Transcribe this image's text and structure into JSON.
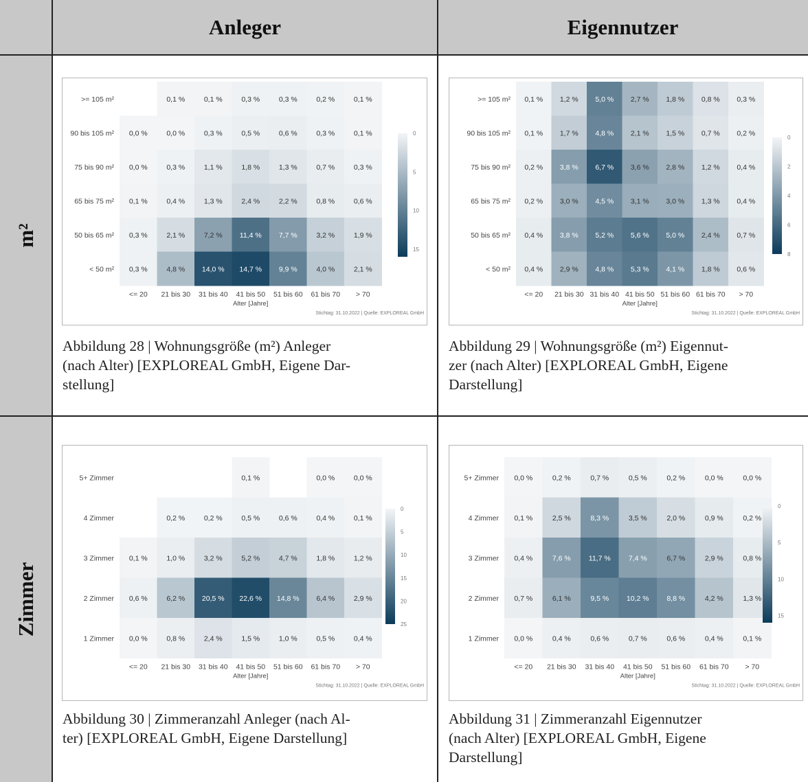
{
  "header": {
    "col1": "Anleger",
    "col2": "Eigennutzer"
  },
  "rows": {
    "row1": "m²",
    "row2": "Zimmer"
  },
  "colors": {
    "low": "#f3f5f7",
    "high": "#0b3b5a",
    "header_bg": "#c8c8c8"
  },
  "captions": {
    "fig28": [
      "Abbildung 28 | Wohnungsgröße (m²) Anleger",
      "(nach Alter) [EXPLOREAL GmbH, Eigene Dar-",
      "stellung]"
    ],
    "fig29": [
      "Abbildung 29 | Wohnungsgröße (m²) Eigennut-",
      "zer (nach Alter) [EXPLOREAL GmbH, Eigene",
      "Darstellung]"
    ],
    "fig30": [
      "Abbildung 30 | Zimmeranzahl Anleger (nach Al-",
      "ter) [EXPLOREAL GmbH, Eigene Darstellung]"
    ],
    "fig31": [
      "Abbildung 31 | Zimmeranzahl Eigennutzer",
      "(nach Alter) [EXPLOREAL GmbH, Eigene",
      "Darstellung]"
    ]
  },
  "chart_data": [
    {
      "type": "heatmap",
      "x": [
        "<= 20",
        "21 bis 30",
        "31 bis 40",
        "41 bis 50",
        "51 bis 60",
        "61 bis 70",
        "> 70"
      ],
      "y": [
        ">= 105 m²",
        "90 bis 105 m²",
        "75 bis 90 m²",
        "65 bis 75 m²",
        "50 bis 65 m²",
        "< 50 m²"
      ],
      "values": [
        [
          null,
          0.1,
          0.1,
          0.3,
          0.3,
          0.2,
          0.1
        ],
        [
          0.0,
          0.0,
          0.3,
          0.5,
          0.6,
          0.3,
          0.1
        ],
        [
          0.0,
          0.3,
          1.1,
          1.8,
          1.3,
          0.7,
          0.3
        ],
        [
          0.1,
          0.4,
          1.3,
          2.4,
          2.2,
          0.8,
          0.6
        ],
        [
          0.3,
          2.1,
          7.2,
          11.4,
          7.7,
          3.2,
          1.9
        ],
        [
          0.3,
          4.8,
          14.0,
          14.7,
          9.9,
          4.0,
          2.1
        ]
      ],
      "labels": [
        [
          "",
          "0,1 %",
          "0,1 %",
          "0,3 %",
          "0,3 %",
          "0,2 %",
          "0,1 %"
        ],
        [
          "0,0 %",
          "0,0 %",
          "0,3 %",
          "0,5 %",
          "0,6 %",
          "0,3 %",
          "0,1 %"
        ],
        [
          "0,0 %",
          "0,3 %",
          "1,1 %",
          "1,8 %",
          "1,3 %",
          "0,7 %",
          "0,3 %"
        ],
        [
          "0,1 %",
          "0,4 %",
          "1,3 %",
          "2,4 %",
          "2,2 %",
          "0,8 %",
          "0,6 %"
        ],
        [
          "0,3 %",
          "2,1 %",
          "7,2 %",
          "11,4 %",
          "7,7 %",
          "3,2 %",
          "1,9 %"
        ],
        [
          "0,3 %",
          "4,8 %",
          "14,0 %",
          "14,7 %",
          "9,9 %",
          "4,0 %",
          "2,1 %"
        ]
      ],
      "xlabel": "Alter [Jahre]",
      "colorbar": {
        "min": 0,
        "max": 16,
        "ticks": [
          "0",
          "5",
          "10",
          "15"
        ]
      },
      "source": "Stichtag: 31.10.2022 | Quelle: EXPLOREAL GmbH"
    },
    {
      "type": "heatmap",
      "x": [
        "<= 20",
        "21 bis 30",
        "31 bis 40",
        "41 bis 50",
        "51 bis 60",
        "61 bis 70",
        "> 70"
      ],
      "y": [
        ">= 105 m²",
        "90 bis 105 m²",
        "75 bis 90 m²",
        "65 bis 75 m²",
        "50 bis 65 m²",
        "< 50 m²"
      ],
      "values": [
        [
          0.1,
          1.2,
          5.0,
          2.7,
          1.8,
          0.8,
          0.3
        ],
        [
          0.1,
          1.7,
          4.8,
          2.1,
          1.5,
          0.7,
          0.2
        ],
        [
          0.2,
          3.8,
          6.7,
          3.6,
          2.8,
          1.2,
          0.4
        ],
        [
          0.2,
          3.0,
          4.5,
          3.1,
          3.0,
          1.3,
          0.4
        ],
        [
          0.4,
          3.8,
          5.2,
          5.6,
          5.0,
          2.4,
          0.7
        ],
        [
          0.4,
          2.9,
          4.8,
          5.3,
          4.1,
          1.8,
          0.6
        ]
      ],
      "labels": [
        [
          "0,1 %",
          "1,2 %",
          "5,0 %",
          "2,7 %",
          "1,8 %",
          "0,8 %",
          "0,3 %"
        ],
        [
          "0,1 %",
          "1,7 %",
          "4,8 %",
          "2,1 %",
          "1,5 %",
          "0,7 %",
          "0,2 %"
        ],
        [
          "0,2 %",
          "3,8 %",
          "6,7 %",
          "3,6 %",
          "2,8 %",
          "1,2 %",
          "0,4 %"
        ],
        [
          "0,2 %",
          "3,0 %",
          "4,5 %",
          "3,1 %",
          "3,0 %",
          "1,3 %",
          "0,4 %"
        ],
        [
          "0,4 %",
          "3,8 %",
          "5,2 %",
          "5,6 %",
          "5,0 %",
          "2,4 %",
          "0,7 %"
        ],
        [
          "0,4 %",
          "2,9 %",
          "4,8 %",
          "5,3 %",
          "4,1 %",
          "1,8 %",
          "0,6 %"
        ]
      ],
      "xlabel": "Alter [Jahre]",
      "colorbar": {
        "min": 0,
        "max": 8,
        "ticks": [
          "0",
          "2",
          "4",
          "6",
          "8"
        ]
      },
      "source": "Stichtag: 31.10.2022 | Quelle: EXPLOREAL GmbH"
    },
    {
      "type": "heatmap",
      "x": [
        "<= 20",
        "21 bis 30",
        "31 bis 40",
        "41 bis 50",
        "51 bis 60",
        "61 bis 70",
        "> 70"
      ],
      "y": [
        "5+ Zimmer",
        "4 Zimmer",
        "3 Zimmer",
        "2 Zimmer",
        "1 Zimmer"
      ],
      "values": [
        [
          null,
          null,
          null,
          0.1,
          null,
          0.0,
          0.0
        ],
        [
          null,
          0.2,
          0.2,
          0.5,
          0.6,
          0.4,
          0.1
        ],
        [
          0.1,
          1.0,
          3.2,
          5.2,
          4.7,
          1.8,
          1.2
        ],
        [
          0.6,
          6.2,
          20.5,
          22.6,
          14.8,
          6.4,
          2.9
        ],
        [
          0.0,
          0.8,
          2.4,
          1.5,
          1.0,
          0.5,
          0.4
        ]
      ],
      "labels": [
        [
          "",
          "",
          "",
          "0,1 %",
          "",
          "0,0 %",
          "0,0 %"
        ],
        [
          "",
          "0,2 %",
          "0,2 %",
          "0,5 %",
          "0,6 %",
          "0,4 %",
          "0,1 %"
        ],
        [
          "0,1 %",
          "1,0 %",
          "3,2 %",
          "5,2 %",
          "4,7 %",
          "1,8 %",
          "1,2 %"
        ],
        [
          "0,6 %",
          "6,2 %",
          "20,5 %",
          "22,6 %",
          "14,8 %",
          "6,4 %",
          "2,9 %"
        ],
        [
          "0,0 %",
          "0,8 %",
          "2,4 %",
          "1,5 %",
          "1,0 %",
          "0,5 %",
          "0,4 %"
        ]
      ],
      "xlabel": "Alter [Jahre]",
      "colorbar": {
        "min": 0,
        "max": 25,
        "ticks": [
          "0",
          "5",
          "10",
          "15",
          "20",
          "25"
        ]
      },
      "source": "Stichtag: 31.10.2022 | Quelle: EXPLOREAL GmbH"
    },
    {
      "type": "heatmap",
      "x": [
        "<= 20",
        "21 bis 30",
        "31 bis 40",
        "41 bis 50",
        "51 bis 60",
        "61 bis 70",
        "> 70"
      ],
      "y": [
        "5+ Zimmer",
        "4 Zimmer",
        "3 Zimmer",
        "2 Zimmer",
        "1 Zimmer"
      ],
      "values": [
        [
          0.0,
          0.2,
          0.7,
          0.5,
          0.2,
          0.0,
          0.0
        ],
        [
          0.1,
          2.5,
          8.3,
          3.5,
          2.0,
          0.9,
          0.2
        ],
        [
          0.4,
          7.6,
          11.7,
          7.4,
          6.7,
          2.9,
          0.8
        ],
        [
          0.7,
          6.1,
          9.5,
          10.2,
          8.8,
          4.2,
          1.3
        ],
        [
          0.0,
          0.4,
          0.6,
          0.7,
          0.6,
          0.4,
          0.1
        ]
      ],
      "labels": [
        [
          "0,0 %",
          "0,2 %",
          "0,7 %",
          "0,5 %",
          "0,2 %",
          "0,0 %",
          "0,0 %"
        ],
        [
          "0,1 %",
          "2,5 %",
          "8,3 %",
          "3,5 %",
          "2,0 %",
          "0,9 %",
          "0,2 %"
        ],
        [
          "0,4 %",
          "7,6 %",
          "11,7 %",
          "7,4 %",
          "6,7 %",
          "2,9 %",
          "0,8 %"
        ],
        [
          "0,7 %",
          "6,1 %",
          "9,5 %",
          "10,2 %",
          "8,8 %",
          "4,2 %",
          "1,3 %"
        ],
        [
          "0,0 %",
          "0,4 %",
          "0,6 %",
          "0,7 %",
          "0,6 %",
          "0,4 %",
          "0,1 %"
        ]
      ],
      "xlabel": "Alter [Jahre]",
      "colorbar": {
        "min": 0,
        "max": 16,
        "ticks": [
          "0",
          "5",
          "10",
          "15"
        ]
      },
      "source": "Stichtag: 31.10.2022 | Quelle: EXPLOREAL GmbH"
    }
  ]
}
